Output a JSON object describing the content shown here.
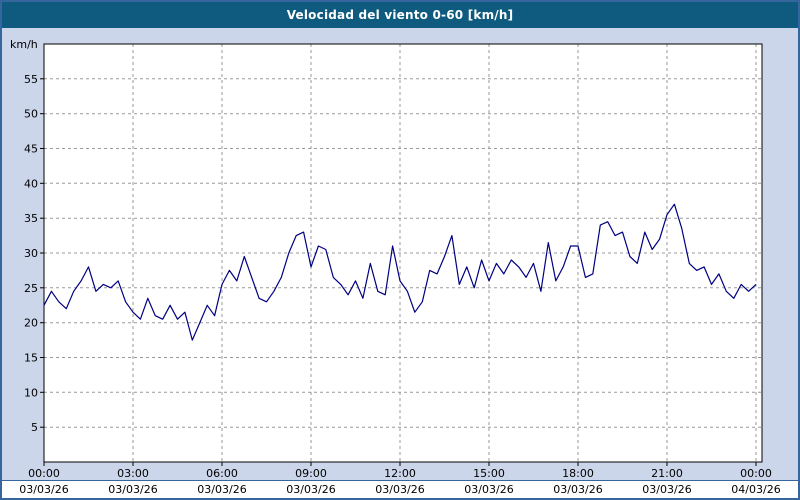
{
  "window": {
    "title": "Velocidad del viento 0-60 [km/h]"
  },
  "chart_data": {
    "type": "line",
    "title": "Velocidad del viento 0-60 [km/h]",
    "xlabel": "",
    "ylabel": "km/h",
    "ylim": [
      0,
      60
    ],
    "y_ticks": [
      5,
      10,
      15,
      20,
      25,
      30,
      35,
      40,
      45,
      50,
      55
    ],
    "x_tick_labels": [
      "00:00",
      "03:00",
      "06:00",
      "09:00",
      "12:00",
      "15:00",
      "18:00",
      "21:00",
      "00:00"
    ],
    "x_date_labels": [
      "03/03/26",
      "03/03/26",
      "03/03/26",
      "03/03/26",
      "03/03/26",
      "03/03/26",
      "03/03/26",
      "03/03/26",
      "04/03/26"
    ],
    "x_hours_range": [
      0,
      24
    ],
    "grid": true,
    "legend_position": "none",
    "series": [
      {
        "name": "Velocidad del viento",
        "start_time": "00:00",
        "step_minutes": 15,
        "values": [
          22.5,
          24.5,
          23.0,
          22.0,
          24.5,
          26.0,
          28.0,
          24.5,
          25.5,
          25.0,
          26.0,
          23.0,
          21.5,
          20.5,
          23.5,
          21.0,
          20.5,
          22.5,
          20.5,
          21.5,
          17.5,
          20.0,
          22.5,
          21.0,
          25.5,
          27.5,
          26.0,
          29.5,
          26.5,
          23.5,
          23.0,
          24.5,
          26.5,
          30.0,
          32.5,
          33.0,
          28.0,
          31.0,
          30.5,
          26.5,
          25.5,
          24.0,
          26.0,
          23.5,
          28.5,
          24.5,
          24.0,
          31.0,
          26.0,
          24.5,
          21.5,
          23.0,
          27.5,
          27.0,
          29.5,
          32.5,
          25.5,
          28.0,
          25.0,
          29.0,
          26.0,
          28.5,
          27.0,
          29.0,
          28.0,
          26.5,
          28.5,
          24.5,
          31.5,
          26.0,
          28.0,
          31.0,
          31.0,
          26.5,
          27.0,
          34.0,
          34.5,
          32.5,
          33.0,
          29.5,
          28.5,
          33.0,
          30.5,
          32.0,
          35.5,
          37.0,
          33.5,
          28.5,
          27.5,
          28.0,
          25.5,
          27.0,
          24.5,
          23.5,
          25.5,
          24.5,
          25.5
        ]
      }
    ],
    "colors": {
      "line": "#000080",
      "plot_bg": "#ffffff",
      "outer_bg": "#ccd6ea",
      "title_bg": "#0f5b80",
      "grid": "#9a9a9a",
      "plot_border": "#000000",
      "frame_border": "#35679e"
    }
  }
}
